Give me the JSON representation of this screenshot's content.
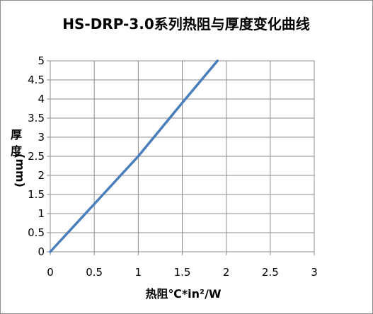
{
  "chart_data": {
    "type": "line",
    "title": "HS-DRP-3.0系列热阻与厚度变化曲线",
    "xlabel": "热阻℃*in²/W",
    "ylabel": [
      "厚",
      "度",
      "(mm)"
    ],
    "xlim": [
      0,
      3
    ],
    "ylim": [
      0,
      5
    ],
    "xticks": [
      "0",
      "0.5",
      "1",
      "1.5",
      "2",
      "2.5",
      "3"
    ],
    "yticks": [
      "0",
      "0.5",
      "1",
      "1.5",
      "2",
      "2.5",
      "3",
      "3.5",
      "4",
      "4.5",
      "5"
    ],
    "grid": true,
    "legend": "none",
    "series": [
      {
        "color": "#4a7ebb",
        "x": [
          0,
          0.5,
          1.0,
          1.5,
          1.9
        ],
        "y": [
          0,
          1.25,
          2.5,
          3.9,
          5.0
        ]
      }
    ]
  }
}
